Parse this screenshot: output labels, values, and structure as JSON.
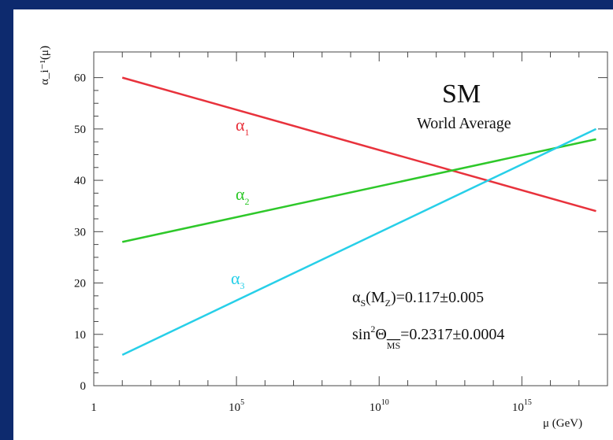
{
  "chart_data": {
    "type": "line",
    "title": "SM",
    "subtitle": "World Average",
    "xlabel": "μ (GeV)",
    "ylabel": "α_i⁻¹(μ)",
    "x_scale": "log10",
    "xlim": [
      0,
      18
    ],
    "ylim": [
      0,
      65
    ],
    "xticks": [
      {
        "value": 0,
        "base": "1",
        "exp": ""
      },
      {
        "value": 5,
        "base": "10",
        "exp": "5"
      },
      {
        "value": 10,
        "base": "10",
        "exp": "10"
      },
      {
        "value": 15,
        "base": "10",
        "exp": "15"
      }
    ],
    "yticks": [
      "0",
      "10",
      "20",
      "30",
      "40",
      "50",
      "60"
    ],
    "series": [
      {
        "name": "α1",
        "label_sub": "1",
        "color": "#e8323c",
        "x": [
          1,
          17.6
        ],
        "y": [
          60,
          34
        ]
      },
      {
        "name": "α2",
        "label_sub": "2",
        "color": "#2ec82a",
        "x": [
          1,
          17.6
        ],
        "y": [
          28,
          48
        ]
      },
      {
        "name": "α3",
        "label_sub": "3",
        "color": "#27cfe8",
        "x": [
          1,
          17.6
        ],
        "y": [
          6,
          50
        ]
      }
    ],
    "annotations": [
      {
        "main": "α",
        "sub": "S",
        "rest": "(M",
        "sub2": "Z",
        "tail": ")=0.117±0.005"
      },
      {
        "main": "sin",
        "sup": "2",
        "rest": "Θ",
        "sub": "MS",
        "tail": "=0.2317±0.0004"
      }
    ],
    "grid": false
  }
}
